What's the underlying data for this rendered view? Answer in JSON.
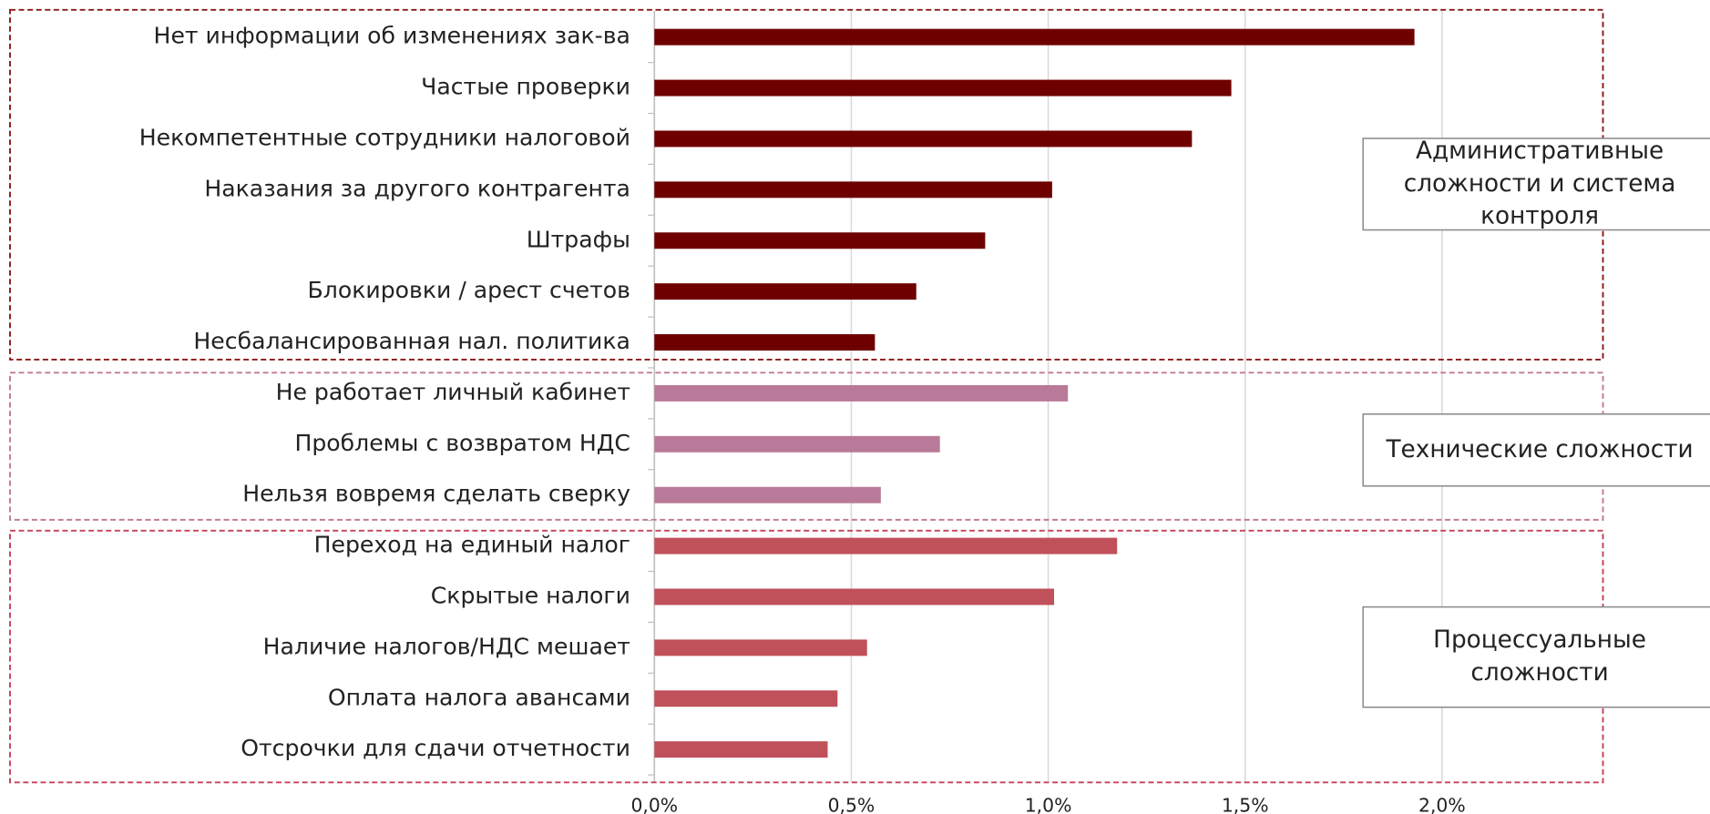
{
  "chart_data": {
    "type": "bar",
    "xlim": [
      0,
      2.5
    ],
    "xticks": [
      {
        "value": 0,
        "label": "0,0%"
      },
      {
        "value": 0.5,
        "label": "0,5%"
      },
      {
        "value": 1,
        "label": "1,0%"
      },
      {
        "value": 1.5,
        "label": "1,5%"
      },
      {
        "value": 2,
        "label": "2,0%"
      }
    ],
    "grid": true,
    "groups": [
      {
        "label_lines": [
          "Административные",
          "сложности и система",
          "контроля"
        ],
        "color": "#6e0000",
        "categories": [
          "Нет информации об изменениях зак-ва",
          "Частые проверки",
          "Некомпетентные сотрудники налоговой",
          "Наказания за другого контрагента",
          "Штрафы",
          "Блокировки / арест счетов",
          "Несбалансированная нал. политика"
        ],
        "values": [
          1.93,
          1.465,
          1.365,
          1.01,
          0.84,
          0.665,
          0.56
        ]
      },
      {
        "label_lines": [
          "Технические сложности"
        ],
        "color": "#b87a98",
        "categories": [
          "Не работает личный кабинет",
          "Проблемы с возвратом НДС",
          "Нельзя вовремя сделать сверку"
        ],
        "values": [
          1.05,
          0.725,
          0.575
        ]
      },
      {
        "label_lines": [
          "Процессуальные",
          "сложности"
        ],
        "color": "#c0505a",
        "categories": [
          "Переход на единый налог",
          "Скрытые налоги",
          "Наличие налогов/НДС мешает",
          "Оплата налога авансами",
          "Отсрочки для сдачи отчетности"
        ],
        "values": [
          1.175,
          1.015,
          0.54,
          0.465,
          0.44
        ]
      }
    ]
  }
}
